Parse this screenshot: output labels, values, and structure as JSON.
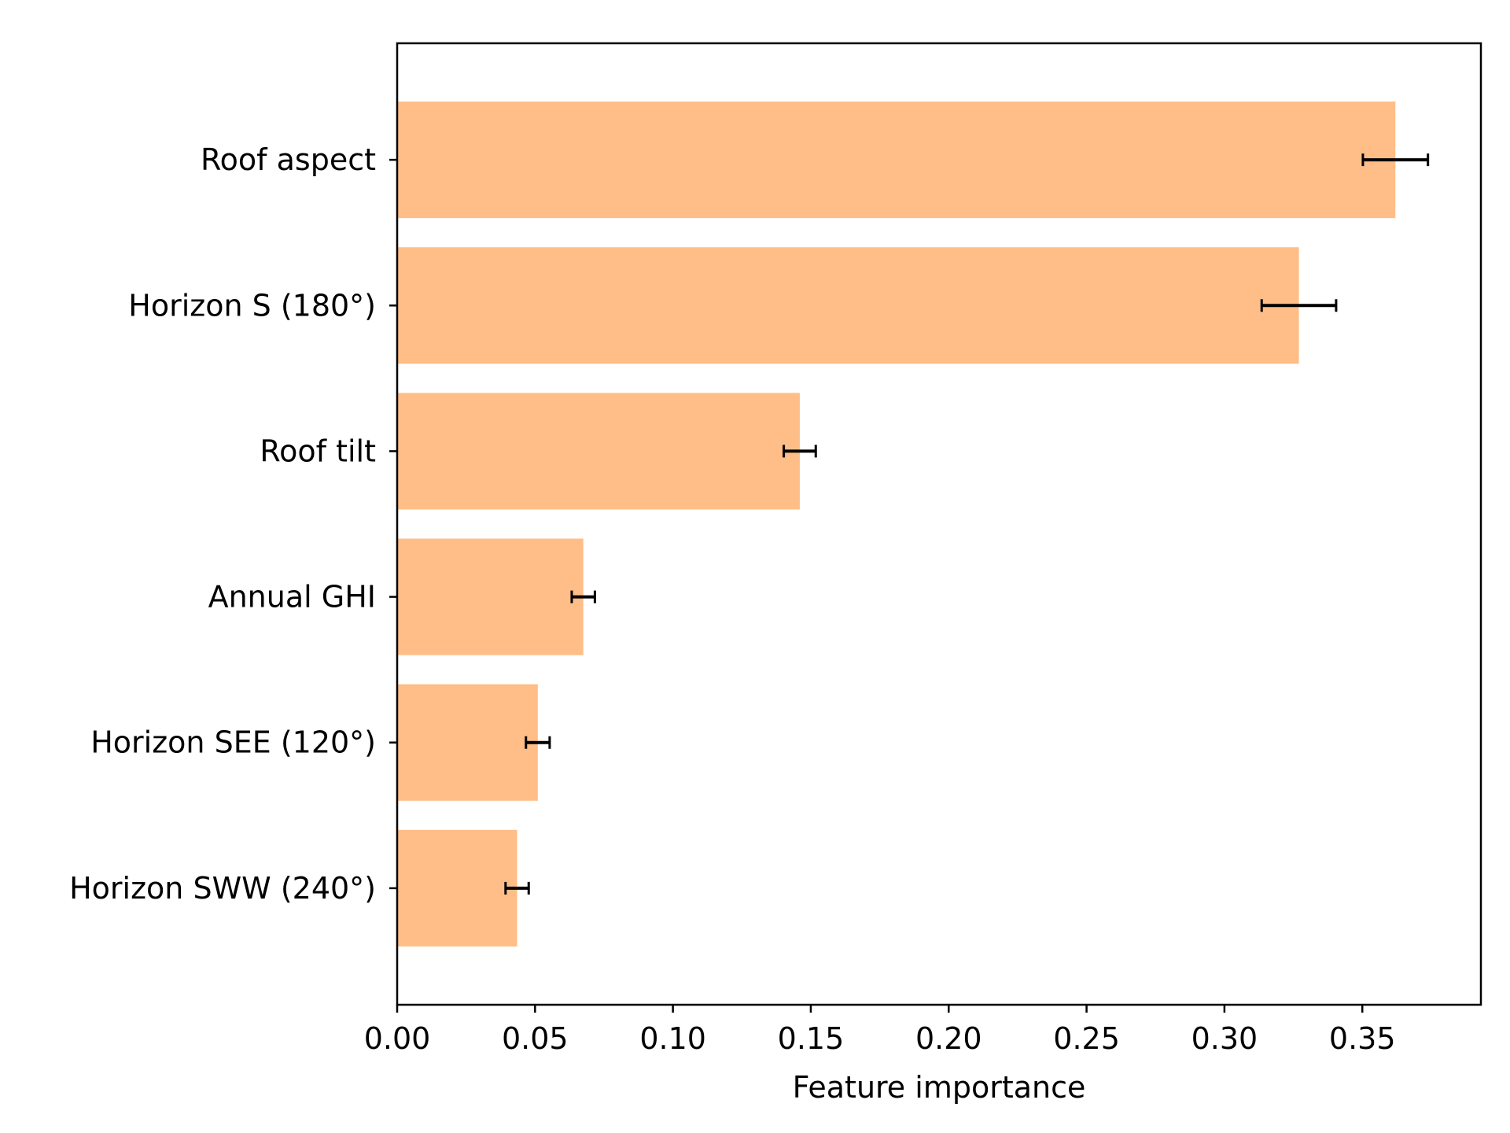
{
  "chart_data": {
    "type": "bar",
    "orientation": "horizontal",
    "title": "",
    "xlabel": "Feature importance",
    "ylabel": "",
    "xlim": [
      0,
      0.393
    ],
    "x_ticks": [
      "0.00",
      "0.05",
      "0.10",
      "0.15",
      "0.20",
      "0.25",
      "0.30",
      "0.35"
    ],
    "grid": false,
    "legend": "none",
    "bar_color": "#ffbe87",
    "errorbar_color": "#000000",
    "categories": [
      "Roof aspect",
      "Horizon S (180°)",
      "Roof tilt",
      "Annual GHI",
      "Horizon SEE (120°)",
      "Horizon SWW (240°)"
    ],
    "values": [
      0.362,
      0.327,
      0.146,
      0.0675,
      0.051,
      0.0435
    ],
    "errors": [
      0.0118,
      0.0135,
      0.0058,
      0.0042,
      0.0043,
      0.0042
    ]
  }
}
